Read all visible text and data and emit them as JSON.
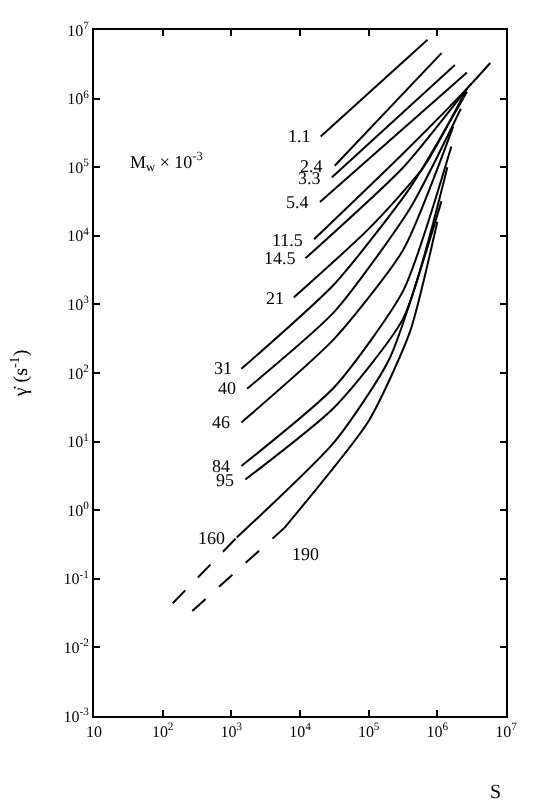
{
  "chart_data": {
    "type": "line",
    "xlabel": "S",
    "ylabel": "γ̇ (s$^{-1}$)",
    "log": "xy",
    "legend": false,
    "marker": "none",
    "line_style": "solid",
    "xlim": [
      10,
      10000000
    ],
    "ylim": [
      0.001,
      10000000
    ],
    "xticks": [
      {
        "value": 10,
        "label": "10"
      },
      {
        "value": 100,
        "label": "10$^{2}$"
      },
      {
        "value": 1000,
        "label": "10$^{3}$"
      },
      {
        "value": 10000,
        "label": "10$^{4}$"
      },
      {
        "value": 100000,
        "label": "10$^{5}$"
      },
      {
        "value": 1000000,
        "label": "10$^{6}$"
      },
      {
        "value": 10000000,
        "label": "10$^{7}$"
      }
    ],
    "yticks": [
      {
        "value": 0.001,
        "label": "10$^{-3}$"
      },
      {
        "value": 0.01,
        "label": "10$^{-2}$"
      },
      {
        "value": 0.1,
        "label": "10$^{-1}$"
      },
      {
        "value": 1,
        "label": "10$^{0}$"
      },
      {
        "value": 10,
        "label": "10$^{1}$"
      },
      {
        "value": 100,
        "label": "10$^{2}$"
      },
      {
        "value": 1000,
        "label": "10$^{3}$"
      },
      {
        "value": 10000,
        "label": "10$^{4}$"
      },
      {
        "value": 100000,
        "label": "10$^{5}$"
      },
      {
        "value": 1000000,
        "label": "10$^{6}$"
      },
      {
        "value": 10000000,
        "label": "10$^{7}$"
      }
    ],
    "annotations": [
      "M$_{w}$ × 10$^{-3}$"
    ],
    "series": [
      {
        "name": "1.1",
        "color": "#000000",
        "x": [
          20000,
          720000
        ],
        "values": [
          280000,
          7200000
        ]
      },
      {
        "name": "2.4",
        "color": "#000000",
        "x": [
          32000,
          1150000
        ],
        "values": [
          105000,
          4600000
        ]
      },
      {
        "name": "3.3",
        "color": "#000000",
        "x": [
          29000,
          1800000
        ],
        "values": [
          71000,
          3100000
        ]
      },
      {
        "name": "5.4",
        "color": "#000000",
        "x": [
          19500,
          2700000
        ],
        "values": [
          31000,
          2400000
        ]
      },
      {
        "name": "11.5",
        "color": "#000000",
        "x": [
          16000,
          320000,
          2700000,
          5900000
        ],
        "values": [
          8900,
          160000,
          1400000,
          3300000
        ]
      },
      {
        "name": "14.5",
        "color": "#000000",
        "x": [
          12000,
          320000,
          2700000
        ],
        "values": [
          4700,
          100000,
          1400000
        ]
      },
      {
        "name": "21",
        "color": "#000000",
        "x": [
          8100,
          100000,
          630000,
          2700000
        ],
        "values": [
          1260,
          12600,
          100000,
          1400000
        ]
      },
      {
        "name": "31",
        "color": "#000000",
        "x": [
          1400,
          32000,
          400000,
          2700000
        ],
        "values": [
          115,
          2000,
          50000,
          1260000
        ]
      },
      {
        "name": "40",
        "color": "#000000",
        "x": [
          1700,
          32000,
          400000,
          2200000
        ],
        "values": [
          59,
          790,
          25000,
          710000
        ]
      },
      {
        "name": "46",
        "color": "#000000",
        "x": [
          1400,
          32000,
          320000,
          1700000
        ],
        "values": [
          19,
          320,
          6300,
          390000
        ]
      },
      {
        "name": "84",
        "color": "#000000",
        "x": [
          1400,
          32000,
          320000,
          1600000
        ],
        "values": [
          4.4,
          63,
          1600,
          200000
        ]
      },
      {
        "name": "95",
        "color": "#000000",
        "x": [
          1600,
          32000,
          320000,
          1400000
        ],
        "values": [
          2.8,
          32,
          630,
          100000
        ]
      },
      {
        "color": "#000000",
        "line_style": "dashed",
        "x": [
          140,
          1200
        ],
        "values": [
          0.044,
          0.4
        ]
      },
      {
        "name": "160",
        "color": "#000000",
        "x": [
          1200,
          32000,
          200000,
          1150000
        ],
        "values": [
          0.4,
          10,
          160,
          32000
        ]
      },
      {
        "color": "#000000",
        "line_style": "dashed",
        "x": [
          270,
          5900
        ],
        "values": [
          0.034,
          0.55
        ]
      },
      {
        "name": "190",
        "color": "#000000",
        "x": [
          5900,
          100000,
          400000,
          1000000
        ],
        "values": [
          0.55,
          20,
          400,
          16000
        ]
      }
    ]
  }
}
